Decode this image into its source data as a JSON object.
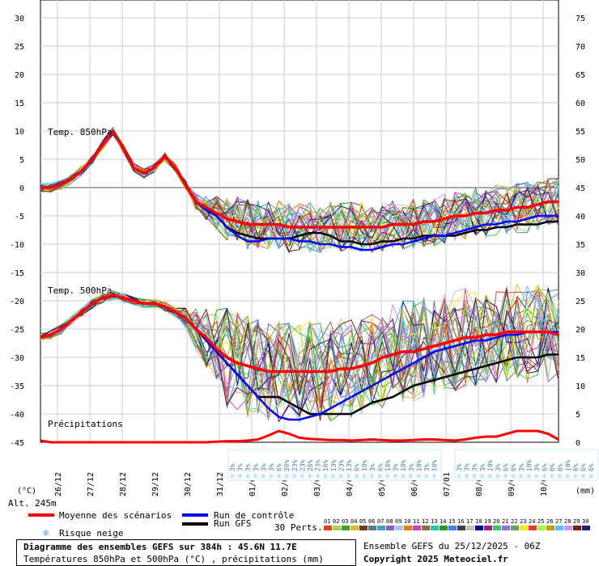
{
  "chart_data": {
    "type": "line",
    "title": "Diagramme des ensembles GEFS sur 384h : 45.6N 11.7E",
    "subtitle": "Températures 850hPa et 500hPa (°C) , précipitations (mm)",
    "altitude": "Alt. 245m",
    "left_axis_unit": "(°C)",
    "right_axis_unit": "(mm)",
    "left_ticks": [
      30,
      25,
      20,
      15,
      10,
      5,
      0,
      -5,
      -10,
      -15,
      -20,
      -25,
      -30,
      -35,
      -40,
      -45
    ],
    "right_ticks": [
      75,
      70,
      65,
      60,
      55,
      50,
      45,
      40,
      35,
      30,
      25,
      20,
      15,
      10,
      5,
      0
    ],
    "ylim_left": [
      -45,
      30
    ],
    "ylim_right": [
      0,
      75
    ],
    "x_labels": [
      "26/12",
      "27/12",
      "28/12",
      "29/12",
      "30/12",
      "31/12",
      "01/01",
      "02/01",
      "03/01",
      "04/01",
      "05/01",
      "06/01",
      "07/01",
      "08/01",
      "09/01",
      "10/01"
    ],
    "panel_labels": {
      "t850": "Temp. 850hPa",
      "t500": "Temp. 500hPa",
      "precip": "Précipitations"
    },
    "t850_control": [
      0,
      0,
      0.5,
      1.5,
      3,
      5,
      7.5,
      10,
      7,
      3.5,
      2.5,
      3.5,
      5.5,
      3.5,
      0.5,
      -2.5,
      -4,
      -5,
      -7,
      -8.5,
      -9.5,
      -9.5,
      -9,
      -9,
      -9,
      -9.5,
      -9.5,
      -10,
      -10,
      -10.5,
      -10.5,
      -11,
      -11,
      -10.5,
      -10,
      -10,
      -9.5,
      -9,
      -8.5,
      -8.5,
      -8,
      -7.5,
      -7,
      -6.5,
      -6.5,
      -6,
      -6,
      -5.5,
      -5,
      -5,
      -5
    ],
    "t850_gfs": [
      0,
      0,
      0.5,
      1.5,
      3,
      5,
      7.5,
      10,
      7,
      3.5,
      2.5,
      3.5,
      5.5,
      3.5,
      0.5,
      -2.5,
      -4,
      -5,
      -7,
      -8,
      -8.5,
      -9,
      -9,
      -9,
      -9,
      -8.5,
      -8,
      -8,
      -8.5,
      -9.5,
      -9.5,
      -10,
      -10,
      -9.5,
      -9.5,
      -9,
      -9,
      -8.5,
      -8.5,
      -8.5,
      -8.5,
      -8,
      -7.5,
      -7.5,
      -7,
      -7,
      -6.5,
      -6.5,
      -6.5,
      -6,
      -6
    ],
    "t850_mean": [
      0,
      0,
      0.5,
      1.5,
      3,
      5,
      7.5,
      10,
      7,
      3.5,
      2.5,
      3.5,
      5.5,
      3.5,
      0.5,
      -2.5,
      -3.5,
      -4.5,
      -5.5,
      -6,
      -6.5,
      -6.5,
      -6.5,
      -6.5,
      -7,
      -7,
      -7,
      -7,
      -7,
      -7,
      -7,
      -7,
      -7,
      -7,
      -6.5,
      -6.5,
      -6.5,
      -6,
      -6,
      -5.5,
      -5,
      -5,
      -4.5,
      -4.5,
      -4,
      -4,
      -3.5,
      -3.5,
      -3,
      -2.5,
      -2.5
    ],
    "t500_control": [
      -26.5,
      -26,
      -25,
      -23.5,
      -22,
      -20.5,
      -19.5,
      -19,
      -19.5,
      -20,
      -20.5,
      -20.5,
      -21,
      -22,
      -23,
      -25,
      -27,
      -29,
      -31,
      -33,
      -35,
      -37,
      -39,
      -40.5,
      -41,
      -41,
      -40.5,
      -40,
      -39,
      -38,
      -37,
      -36,
      -35,
      -34,
      -33,
      -32,
      -31,
      -30,
      -29,
      -28.5,
      -28,
      -27.5,
      -27,
      -27,
      -26.5,
      -26,
      -26,
      -25.5,
      -25.5,
      -25.5,
      -25.5
    ],
    "t500_gfs": [
      -26.5,
      -26,
      -25,
      -23.5,
      -22,
      -20.5,
      -19.5,
      -19,
      -19.5,
      -20,
      -20.5,
      -20.5,
      -21,
      -22,
      -23,
      -25,
      -27,
      -29,
      -31,
      -33,
      -35,
      -37,
      -37,
      -37,
      -38,
      -39,
      -40,
      -40,
      -40,
      -40,
      -40,
      -39,
      -38,
      -37.5,
      -37,
      -36,
      -35,
      -34.5,
      -34,
      -33.5,
      -33,
      -32.5,
      -32,
      -31.5,
      -31,
      -30.5,
      -30,
      -30,
      -30,
      -29.5,
      -29.5
    ],
    "t500_mean": [
      -26.5,
      -26,
      -25,
      -23.5,
      -22,
      -20.5,
      -19.5,
      -19,
      -19.5,
      -20,
      -20.5,
      -20.5,
      -21,
      -22,
      -23,
      -25,
      -26.5,
      -28.5,
      -30,
      -31,
      -31.5,
      -32,
      -32.5,
      -32.5,
      -32.5,
      -32.5,
      -32.5,
      -32.5,
      -32.5,
      -32,
      -32,
      -31.5,
      -31,
      -30,
      -29.5,
      -29,
      -29,
      -28.5,
      -28,
      -27.5,
      -27,
      -26.5,
      -26.5,
      -26,
      -26,
      -25.5,
      -25.5,
      -25.5,
      -25.5,
      -25.5,
      -26
    ],
    "precip_mean": [
      0.3,
      0,
      0,
      0,
      0,
      0,
      0,
      0,
      0,
      0,
      0,
      0,
      0,
      0,
      0,
      0,
      0,
      0.1,
      0.2,
      0.2,
      0.3,
      0.5,
      1.2,
      2,
      1.5,
      0.8,
      0.6,
      0.5,
      0.4,
      0.4,
      0.3,
      0.4,
      0.5,
      0.4,
      0.3,
      0.3,
      0.4,
      0.5,
      0.5,
      0.4,
      0.3,
      0.5,
      0.8,
      1,
      1,
      1.5,
      2,
      2,
      2,
      1.5,
      0.5
    ],
    "snow_groups": [
      {
        "labels": [
          "3%",
          "3%",
          "3%",
          "3%",
          "3%",
          "3%",
          "6%",
          "26%",
          "23%",
          "23%",
          "26%",
          "23%",
          "16%",
          "13%",
          "23%",
          "13%",
          "6%",
          "10%",
          "3%",
          "6%",
          "10%",
          "3%",
          "10%",
          "3%",
          "10%",
          "3%",
          "10%"
        ]
      },
      {
        "labels": [
          "3%",
          "3%",
          "3%",
          "3%",
          "10%",
          "3%",
          "6%",
          "6%",
          "3%",
          "10%",
          "3%",
          "6%",
          "6%",
          "6%",
          "10%",
          "6%",
          "6%",
          "6%"
        ]
      }
    ]
  },
  "legend": {
    "mean": "Moyenne des scénarios",
    "control": "Run de contrôle",
    "gfs": "Run GFS",
    "snow": "Risque neige",
    "perts_label": "30 Perts.",
    "pert_numbers": [
      "01",
      "02",
      "03",
      "04",
      "05",
      "06",
      "07",
      "08",
      "09",
      "10",
      "11",
      "12",
      "13",
      "14",
      "15",
      "16",
      "17",
      "18",
      "19",
      "20",
      "21",
      "22",
      "23",
      "24",
      "25",
      "26",
      "27",
      "28",
      "29",
      "30"
    ],
    "pert_colors": [
      "#e8401c",
      "#b0d040",
      "#3ca03c",
      "#e0b830",
      "#704020",
      "#607890",
      "#40a0c0",
      "#8060c0",
      "#a0c8e0",
      "#f07800",
      "#d040d0",
      "#8c6c40",
      "#30c0b0",
      "#20a020",
      "#4080ff",
      "#404040",
      "#c0c0c0",
      "#0000a0",
      "#a02080",
      "#30d060",
      "#9070f0",
      "#60a060",
      "#f0f000",
      "#ff3030",
      "#a0ff40",
      "#c0a000",
      "#50c8ff",
      "#d090ff",
      "#802000",
      "#202080"
    ]
  },
  "footer": {
    "ensemble": "Ensemble GEFS du 25/12/2025 - 06Z",
    "copyright": "Copyright 2025 Meteociel.fr"
  },
  "colors": {
    "mean": "#ff0000",
    "control": "#0000ff",
    "gfs": "#000000",
    "zero_line": "#a8a8a8",
    "grid": "#cccccc",
    "snow": "#9fd8f0"
  }
}
